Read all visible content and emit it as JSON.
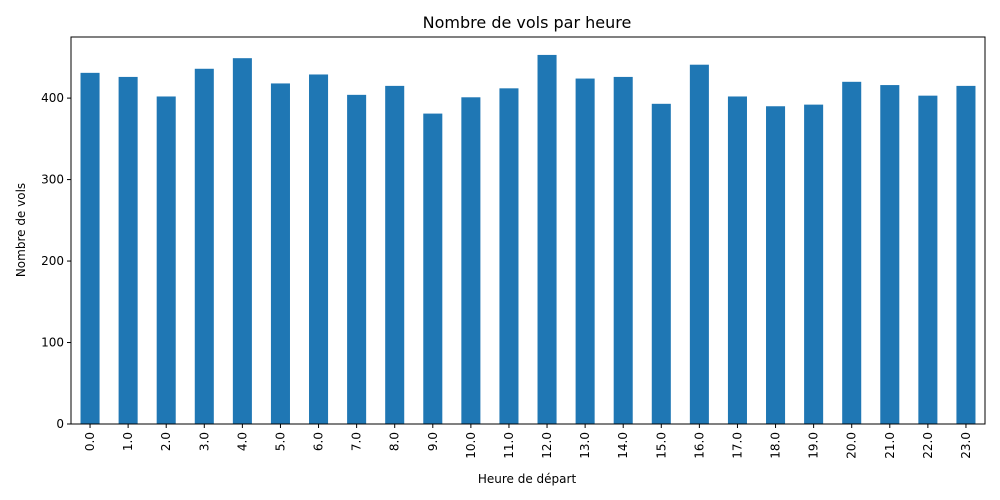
{
  "chart_data": {
    "type": "bar",
    "title": "Nombre de vols par heure",
    "xlabel": "Heure de départ",
    "ylabel": "Nombre de vols",
    "categories": [
      "0.0",
      "1.0",
      "2.0",
      "3.0",
      "4.0",
      "5.0",
      "6.0",
      "7.0",
      "8.0",
      "9.0",
      "10.0",
      "11.0",
      "12.0",
      "13.0",
      "14.0",
      "15.0",
      "16.0",
      "17.0",
      "18.0",
      "19.0",
      "20.0",
      "21.0",
      "22.0",
      "23.0"
    ],
    "values": [
      431,
      426,
      402,
      436,
      449,
      418,
      429,
      404,
      415,
      381,
      401,
      412,
      453,
      424,
      426,
      393,
      441,
      402,
      390,
      392,
      420,
      416,
      403,
      415
    ],
    "ylim": [
      0,
      475
    ],
    "yticks": [
      0,
      100,
      200,
      300,
      400
    ],
    "bar_color": "#1f77b4",
    "grid": false,
    "legend": "none"
  }
}
